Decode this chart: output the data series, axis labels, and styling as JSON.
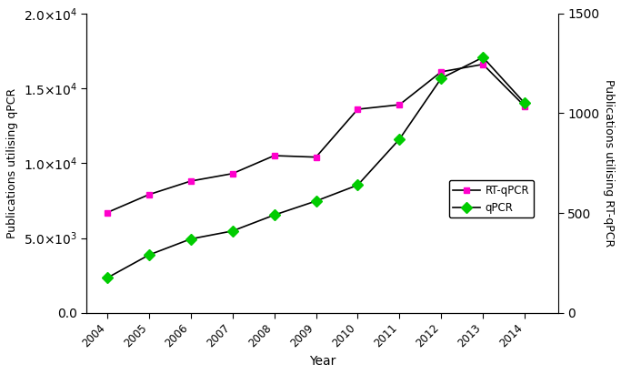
{
  "years": [
    2004,
    2005,
    2006,
    2007,
    2008,
    2009,
    2010,
    2011,
    2012,
    2013,
    2014
  ],
  "rt_qpcr": [
    6700,
    7900,
    8800,
    9300,
    10500,
    10400,
    13600,
    13900,
    16100,
    16600,
    13800
  ],
  "qpcr": [
    175,
    290,
    370,
    410,
    490,
    560,
    640,
    870,
    1175,
    1280,
    1050
  ],
  "rt_qpcr_color": "#ff00cc",
  "qpcr_color": "#00cc00",
  "line_color": "#000000",
  "ylabel_left": "Publications utilising qPCR",
  "ylabel_right": "Publications utilising RT-qPCR",
  "xlabel": "Year",
  "ylim_left": [
    0,
    20000
  ],
  "ylim_right": [
    0,
    1500
  ],
  "legend_labels": [
    "RT-qPCR",
    "qPCR"
  ],
  "marker_rt": "s",
  "marker_qpcr": "D",
  "bg_color": "#ffffff"
}
